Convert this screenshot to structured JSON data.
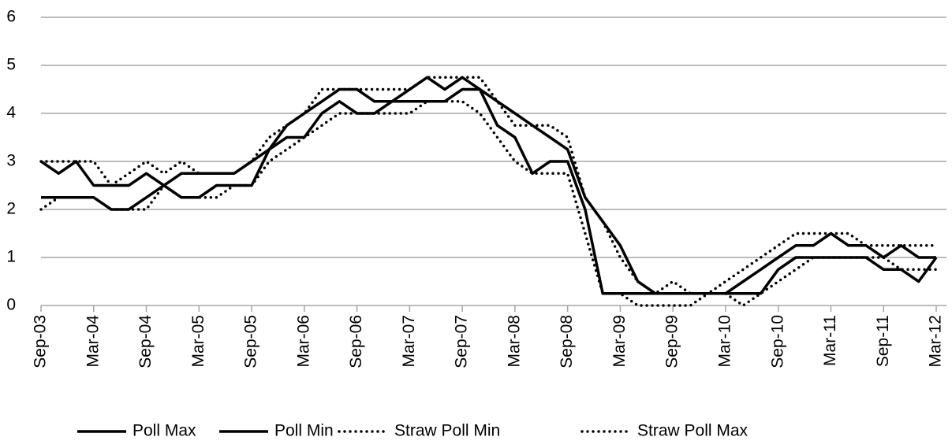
{
  "chart_data": {
    "type": "line",
    "categories": [
      "Sep-03",
      null,
      null,
      "Mar-04",
      null,
      null,
      "Sep-04",
      null,
      null,
      "Mar-05",
      null,
      null,
      "Sep-05",
      null,
      null,
      "Mar-06",
      null,
      null,
      "Sep-06",
      null,
      null,
      "Mar-07",
      null,
      null,
      "Sep-07",
      null,
      null,
      "Mar-08",
      null,
      null,
      "Sep-08",
      null,
      null,
      "Mar-09",
      null,
      null,
      "Sep-09",
      null,
      null,
      "Mar-10",
      null,
      null,
      "Sep-10",
      null,
      null,
      "Mar-11",
      null,
      null,
      "Sep-11",
      null,
      null,
      "Mar-12"
    ],
    "series": [
      {
        "name": "Poll Max",
        "color": "#000000",
        "style": "solid",
        "values": [
          3,
          2.75,
          3,
          2.5,
          2.5,
          2.5,
          2.75,
          2.5,
          2.75,
          2.75,
          2.75,
          2.75,
          3,
          3.25,
          3.75,
          4,
          4.25,
          4.5,
          4.5,
          4.25,
          4.25,
          4.5,
          4.75,
          4.5,
          4.75,
          4.5,
          4.25,
          4,
          3.75,
          3.5,
          3.25,
          2.25,
          1.75,
          1.25,
          0.5,
          0.25,
          0.25,
          0.25,
          0.25,
          0.25,
          0.5,
          0.75,
          1,
          1.25,
          1.25,
          1.5,
          1.25,
          1.25,
          1,
          1.25,
          1,
          1
        ]
      },
      {
        "name": "Poll Min",
        "color": "#000000",
        "style": "solid",
        "values": [
          2.25,
          2.25,
          2.25,
          2.25,
          2,
          2,
          2.25,
          2.5,
          2.25,
          2.25,
          2.5,
          2.5,
          2.5,
          3.25,
          3.5,
          3.5,
          4,
          4.25,
          4,
          4,
          4.25,
          4.25,
          4.25,
          4.25,
          4.5,
          4.5,
          3.75,
          3.5,
          2.75,
          3,
          3,
          2,
          0.25,
          0.25,
          0.25,
          0.25,
          0.25,
          0.25,
          0.25,
          0.25,
          0.25,
          0.25,
          0.75,
          1,
          1,
          1,
          1,
          1,
          0.75,
          0.75,
          0.5,
          1
        ]
      },
      {
        "name": "Straw Poll Min",
        "color": "#000000",
        "style": "dotted",
        "values": [
          2,
          2.25,
          2.25,
          2.25,
          2,
          2,
          2,
          2.5,
          2.25,
          2.25,
          2.25,
          2.5,
          2.5,
          3,
          3.25,
          3.5,
          3.75,
          4,
          4,
          4,
          4,
          4,
          4.25,
          4.25,
          4.25,
          4,
          3.5,
          3,
          2.75,
          2.75,
          2.75,
          1.5,
          0.25,
          0.25,
          0,
          0,
          0,
          0,
          0.25,
          0.25,
          0,
          0.25,
          0.5,
          0.75,
          1,
          1,
          1,
          1,
          1,
          0.75,
          0.75,
          0.75
        ]
      },
      {
        "name": "Straw Poll Max",
        "color": "#000000",
        "style": "dotted",
        "values": [
          3,
          3,
          3,
          3,
          2.5,
          2.75,
          3,
          2.75,
          3,
          2.75,
          2.75,
          2.75,
          3,
          3.5,
          3.75,
          4,
          4.5,
          4.5,
          4.5,
          4.5,
          4.5,
          4.5,
          4.75,
          4.75,
          4.75,
          4.75,
          4.25,
          3.75,
          3.75,
          3.75,
          3.5,
          2.25,
          1.75,
          1,
          0.5,
          0.25,
          0.5,
          0.25,
          0.25,
          0.5,
          0.75,
          1,
          1.25,
          1.5,
          1.5,
          1.5,
          1.5,
          1.25,
          1.25,
          1.25,
          1.25,
          1.25
        ]
      }
    ],
    "ylim": [
      0,
      6
    ],
    "yticks": [
      0,
      1,
      2,
      3,
      4,
      5,
      6
    ],
    "grid": true,
    "legend": "bottom"
  }
}
